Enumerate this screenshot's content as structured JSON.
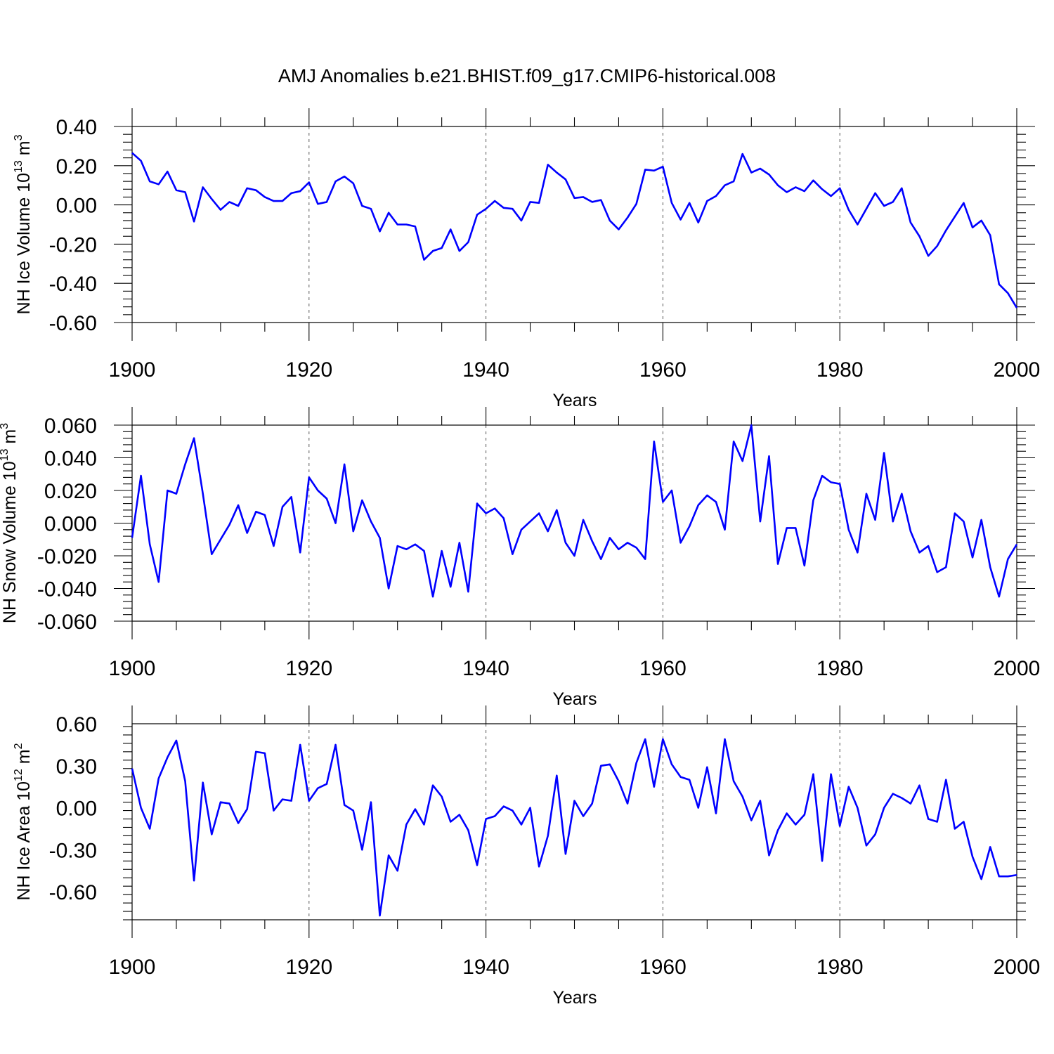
{
  "title": "AMJ Anomalies b.e21.BHIST.f09_g17.CMIP6-historical.008",
  "chart_data": [
    {
      "type": "line",
      "ylabel": "NH Ice Volume 10",
      "ylabel_sup": "13",
      "ylabel_unit": " m",
      "ylabel_unit_sup": "3",
      "xlabel": "Years",
      "xlim": [
        1900,
        2000
      ],
      "ylim": [
        -0.6,
        0.4
      ],
      "ymin_plot": -0.6,
      "ymax_plot": 0.4,
      "yticks": [
        0.4,
        0.2,
        0.0,
        -0.2,
        -0.4,
        -0.6
      ],
      "ytick_labels": [
        "0.40",
        "0.20",
        "0.00",
        "-0.20",
        "-0.40",
        "-0.60"
      ],
      "xticks": [
        1900,
        1920,
        1940,
        1960,
        1980,
        2000
      ],
      "xtick_labels": [
        "1900",
        "1920",
        "1940",
        "1960",
        "1980",
        "2000"
      ],
      "grid_x": [
        1920,
        1940,
        1960,
        1980
      ],
      "color": "#0000ff",
      "x_start": 1900,
      "values": [
        0.265,
        0.225,
        0.12,
        0.105,
        0.17,
        0.075,
        0.065,
        -0.085,
        0.09,
        0.03,
        -0.025,
        0.015,
        -0.005,
        0.085,
        0.075,
        0.04,
        0.02,
        0.02,
        0.06,
        0.07,
        0.115,
        0.005,
        0.015,
        0.12,
        0.145,
        0.11,
        -0.005,
        -0.02,
        -0.135,
        -0.04,
        -0.1,
        -0.1,
        -0.11,
        -0.28,
        -0.235,
        -0.22,
        -0.125,
        -0.235,
        -0.19,
        -0.05,
        -0.02,
        0.02,
        -0.015,
        -0.02,
        -0.08,
        0.015,
        0.01,
        0.205,
        0.165,
        0.13,
        0.035,
        0.04,
        0.015,
        0.025,
        -0.08,
        -0.125,
        -0.065,
        0.005,
        0.18,
        0.175,
        0.195,
        0.01,
        -0.075,
        0.01,
        -0.09,
        0.02,
        0.045,
        0.1,
        0.12,
        0.26,
        0.165,
        0.185,
        0.155,
        0.1,
        0.065,
        0.09,
        0.07,
        0.125,
        0.08,
        0.045,
        0.085,
        -0.025,
        -0.1,
        -0.02,
        0.06,
        -0.005,
        0.015,
        0.085,
        -0.09,
        -0.16,
        -0.26,
        -0.21,
        -0.13,
        -0.06,
        0.01,
        -0.115,
        -0.08,
        -0.155,
        -0.405,
        -0.45,
        -0.525
      ]
    },
    {
      "type": "line",
      "ylabel": "NH Snow Volume 10",
      "ylabel_sup": "13",
      "ylabel_unit": " m",
      "ylabel_unit_sup": "3",
      "xlabel": "Years",
      "xlim": [
        1900,
        2000
      ],
      "ylim": [
        -0.06,
        0.06
      ],
      "ymin_plot": -0.06,
      "ymax_plot": 0.06,
      "yticks": [
        0.06,
        0.04,
        0.02,
        0.0,
        -0.02,
        -0.04,
        -0.06
      ],
      "ytick_labels": [
        "0.060",
        "0.040",
        "0.020",
        "0.000",
        "-0.020",
        "-0.040",
        "-0.060"
      ],
      "xticks": [
        1900,
        1920,
        1940,
        1960,
        1980,
        2000
      ],
      "xtick_labels": [
        "1900",
        "1920",
        "1940",
        "1960",
        "1980",
        "2000"
      ],
      "grid_x": [
        1920,
        1940,
        1960,
        1980
      ],
      "color": "#0000ff",
      "x_start": 1900,
      "values": [
        -0.009,
        0.029,
        -0.013,
        -0.036,
        0.02,
        0.018,
        0.036,
        0.052,
        0.018,
        -0.019,
        -0.01,
        -0.001,
        0.011,
        -0.006,
        0.007,
        0.005,
        -0.014,
        0.01,
        0.016,
        -0.018,
        0.028,
        0.02,
        0.015,
        0.0,
        0.036,
        -0.005,
        0.014,
        0.001,
        -0.009,
        -0.04,
        -0.014,
        -0.016,
        -0.013,
        -0.017,
        -0.045,
        -0.017,
        -0.039,
        -0.012,
        -0.042,
        0.012,
        0.006,
        0.009,
        0.003,
        -0.019,
        -0.004,
        0.001,
        0.006,
        -0.005,
        0.008,
        -0.012,
        -0.02,
        0.002,
        -0.011,
        -0.022,
        -0.009,
        -0.016,
        -0.012,
        -0.015,
        -0.022,
        0.05,
        0.013,
        0.02,
        -0.012,
        -0.002,
        0.011,
        0.017,
        0.013,
        -0.004,
        0.05,
        0.038,
        0.06,
        0.001,
        0.041,
        -0.025,
        -0.003,
        -0.003,
        -0.026,
        0.014,
        0.029,
        0.025,
        0.024,
        -0.004,
        -0.018,
        0.018,
        0.002,
        0.043,
        0.001,
        0.018,
        -0.005,
        -0.018,
        -0.014,
        -0.03,
        -0.027,
        0.006,
        0.001,
        -0.021,
        0.002,
        -0.027,
        -0.045,
        -0.022,
        -0.013
      ]
    },
    {
      "type": "line",
      "ylabel": "NH Ice Area 10",
      "ylabel_sup": "12",
      "ylabel_unit": " m",
      "ylabel_unit_sup": "2",
      "xlabel": "Years",
      "xlim": [
        1900,
        2000
      ],
      "ylim": [
        -0.8,
        0.6
      ],
      "ymin_plot": -0.8,
      "ymax_plot": 0.6,
      "yticks": [
        0.6,
        0.3,
        0.0,
        -0.3,
        -0.6
      ],
      "ytick_labels": [
        "0.60",
        "0.30",
        "0.00",
        "-0.30",
        "-0.60"
      ],
      "xticks": [
        1900,
        1920,
        1940,
        1960,
        1980,
        2000
      ],
      "xtick_labels": [
        "1900",
        "1920",
        "1940",
        "1960",
        "1980",
        "2000"
      ],
      "grid_x": [
        1920,
        1940,
        1960,
        1980
      ],
      "color": "#0000ff",
      "x_start": 1900,
      "values": [
        0.28,
        0.0,
        -0.15,
        0.21,
        0.36,
        0.48,
        0.19,
        -0.52,
        0.18,
        -0.19,
        0.04,
        0.03,
        -0.11,
        -0.01,
        0.4,
        0.39,
        -0.02,
        0.06,
        0.05,
        0.45,
        0.05,
        0.14,
        0.17,
        0.45,
        0.02,
        -0.02,
        -0.3,
        0.04,
        -0.77,
        -0.34,
        -0.45,
        -0.12,
        -0.01,
        -0.12,
        0.16,
        0.08,
        -0.1,
        -0.05,
        -0.16,
        -0.41,
        -0.08,
        -0.06,
        0.01,
        -0.02,
        -0.12,
        0.0,
        -0.42,
        -0.2,
        0.23,
        -0.33,
        0.05,
        -0.06,
        0.03,
        0.3,
        0.31,
        0.19,
        0.03,
        0.32,
        0.49,
        0.15,
        0.49,
        0.31,
        0.22,
        0.2,
        0.0,
        0.29,
        -0.04,
        0.49,
        0.19,
        0.08,
        -0.09,
        0.05,
        -0.34,
        -0.16,
        -0.04,
        -0.12,
        -0.05,
        0.24,
        -0.38,
        0.24,
        -0.13,
        0.15,
        0.0,
        -0.27,
        -0.19,
        0.0,
        0.1,
        0.07,
        0.03,
        0.16,
        -0.08,
        -0.1,
        0.2,
        -0.15,
        -0.1,
        -0.35,
        -0.51,
        -0.28,
        -0.49,
        -0.49,
        -0.48
      ]
    }
  ]
}
